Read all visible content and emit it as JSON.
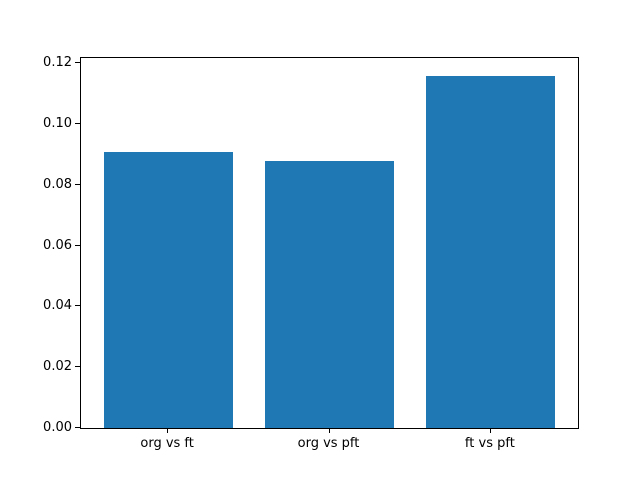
{
  "chart_data": {
    "type": "bar",
    "title": "",
    "xlabel": "",
    "ylabel": "",
    "categories": [
      "org vs ft",
      "org vs pft",
      "ft vs pft"
    ],
    "values": [
      0.091,
      0.088,
      0.116
    ],
    "ylim": [
      0,
      0.1218
    ],
    "yticks": [
      0.0,
      0.02,
      0.04,
      0.06,
      0.08,
      0.1,
      0.12
    ],
    "ytick_labels": [
      "0.00",
      "0.02",
      "0.04",
      "0.06",
      "0.08",
      "0.10",
      "0.12"
    ],
    "bar_color": "#1f77b4",
    "bar_width_data_units": 0.8,
    "grid": false,
    "legend": null,
    "background": "#ffffff",
    "spine_color": "#000000"
  }
}
